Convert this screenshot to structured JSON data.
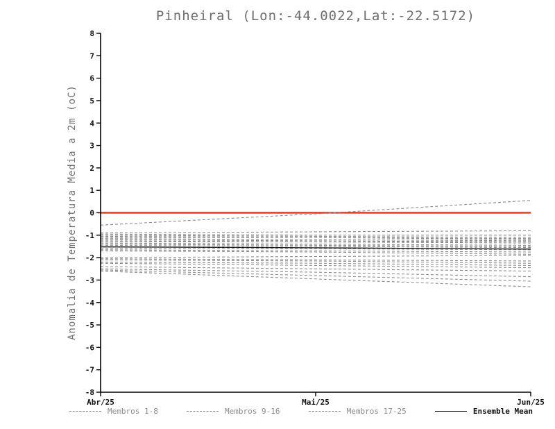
{
  "title": "Pinheiral (Lon:-44.0022,Lat:-22.5172)",
  "chart_data": {
    "type": "line",
    "title": "Pinheiral (Lon:-44.0022,Lat:-22.5172)",
    "xlabel": "",
    "ylabel": "Anomalia de Temperatura Media a 2m (oC)",
    "x_categories": [
      "Abr/25",
      "Mai/25",
      "Jun/25"
    ],
    "ylim": [
      -8,
      8
    ],
    "ytick_step": 1,
    "grid": false,
    "legend_position": "bottom",
    "zero_line": {
      "y": 0,
      "color": "#ff2200"
    },
    "colors": {
      "member": "#8c8c8c",
      "mean": "#1a1a1a",
      "axis": "#000000",
      "title": "#6e6e6e"
    },
    "members": [
      [
        -0.55,
        -0.05,
        0.55
      ],
      [
        -0.9,
        -0.85,
        -0.8
      ],
      [
        -0.95,
        -1.0,
        -1.0
      ],
      [
        -1.0,
        -1.05,
        -1.1
      ],
      [
        -1.05,
        -1.1,
        -1.2
      ],
      [
        -1.1,
        -1.1,
        -1.15
      ],
      [
        -1.15,
        -1.2,
        -1.25
      ],
      [
        -1.2,
        -1.25,
        -1.3
      ],
      [
        -1.25,
        -1.3,
        -1.35
      ],
      [
        -1.3,
        -1.3,
        -1.3
      ],
      [
        -1.35,
        -1.4,
        -1.45
      ],
      [
        -1.4,
        -1.45,
        -1.5
      ],
      [
        -1.45,
        -1.5,
        -1.55
      ],
      [
        -1.6,
        -1.6,
        -1.65
      ],
      [
        -1.65,
        -1.7,
        -1.75
      ],
      [
        -1.7,
        -1.75,
        -1.85
      ],
      [
        -2.0,
        -1.95,
        -1.9
      ],
      [
        -2.05,
        -2.1,
        -2.15
      ],
      [
        -2.1,
        -2.15,
        -2.25
      ],
      [
        -2.2,
        -2.25,
        -2.35
      ],
      [
        -2.25,
        -2.35,
        -2.45
      ],
      [
        -2.4,
        -2.5,
        -2.6
      ],
      [
        -2.5,
        -2.65,
        -2.85
      ],
      [
        -2.55,
        -2.8,
        -3.05
      ],
      [
        -2.6,
        -2.95,
        -3.3
      ]
    ],
    "ensemble_mean": [
      -1.52,
      -1.56,
      -1.62
    ],
    "legend": [
      {
        "label": "Membros 1-8",
        "style": "dashed"
      },
      {
        "label": "Membros 9-16",
        "style": "dashed"
      },
      {
        "label": "Membros 17-25",
        "style": "dashed"
      },
      {
        "label": "Ensemble Mean",
        "style": "solid"
      }
    ]
  }
}
